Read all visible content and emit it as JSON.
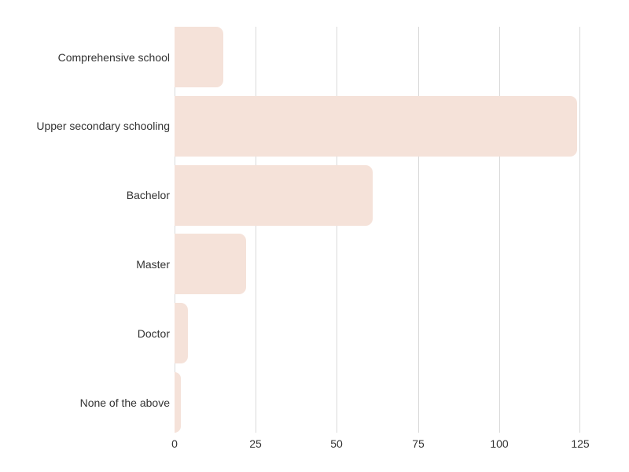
{
  "chart_data": {
    "type": "bar",
    "orientation": "horizontal",
    "title": "",
    "xlabel": "",
    "ylabel": "",
    "categories": [
      "Comprehensive school",
      "Upper secondary schooling",
      "Bachelor",
      "Master",
      "Doctor",
      "None of the above"
    ],
    "values": [
      15,
      124,
      61,
      22,
      4,
      2
    ],
    "xlim": [
      0,
      125
    ],
    "xticks": [
      0,
      25,
      50,
      75,
      100,
      125
    ],
    "grid": true,
    "legend": false,
    "colors": {
      "bar_fill": "#f5e2d9",
      "gridline": "#d9d9d9",
      "text": "#333333",
      "background": "#ffffff"
    }
  }
}
